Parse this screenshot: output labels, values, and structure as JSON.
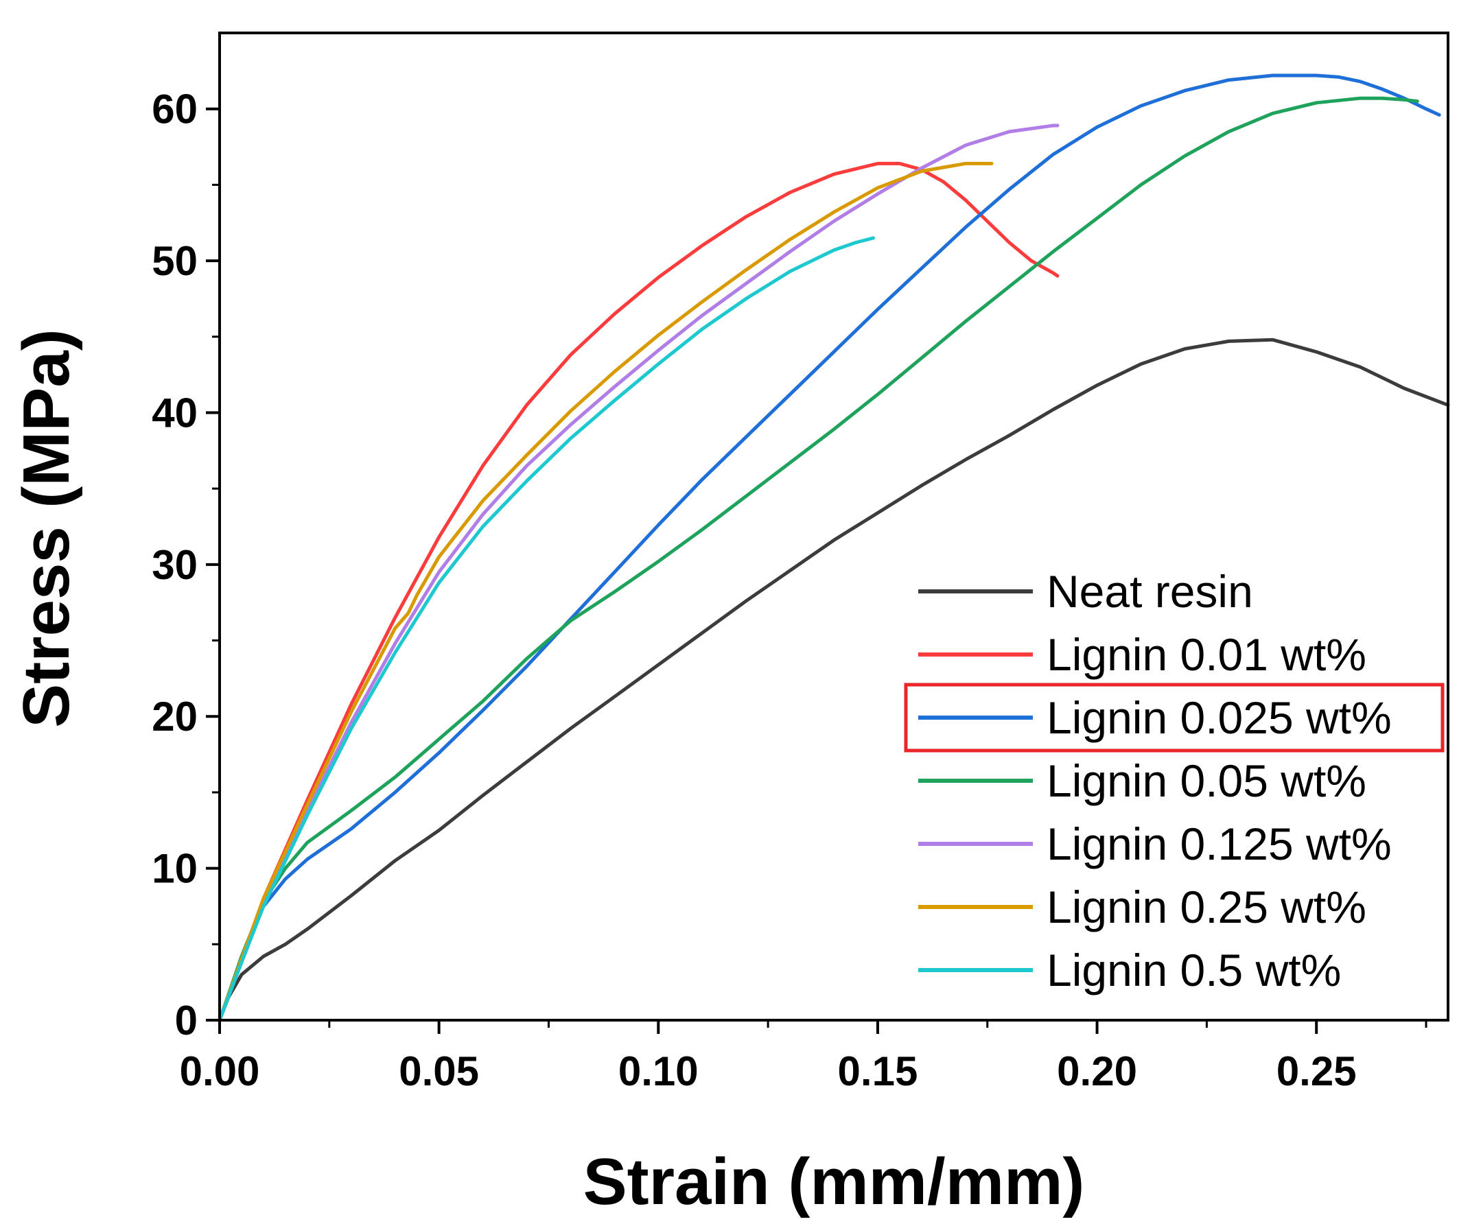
{
  "chart_data": {
    "type": "line",
    "title": "",
    "xlabel": "Strain (mm/mm)",
    "ylabel": "Stress (MPa)",
    "xlim": [
      0,
      0.28
    ],
    "ylim": [
      0,
      65
    ],
    "xticks": [
      0.0,
      0.05,
      0.1,
      0.15,
      0.2,
      0.25
    ],
    "xtick_labels": [
      "0.00",
      "0.05",
      "0.10",
      "0.15",
      "0.20",
      "0.25"
    ],
    "yticks": [
      0,
      10,
      20,
      30,
      40,
      50,
      60
    ],
    "ytick_labels": [
      "0",
      "10",
      "20",
      "30",
      "40",
      "50",
      "60"
    ],
    "grid": false,
    "legend_position": "bottom-right",
    "highlighted_legend_entry": "Lignin 0.025 wt%",
    "highlight_color": "#e8262a",
    "series": [
      {
        "name": "Neat resin",
        "color": "#3c3c3c",
        "x": [
          0,
          0.002,
          0.005,
          0.01,
          0.015,
          0.02,
          0.03,
          0.04,
          0.05,
          0.06,
          0.07,
          0.08,
          0.09,
          0.1,
          0.11,
          0.12,
          0.13,
          0.14,
          0.15,
          0.16,
          0.17,
          0.18,
          0.19,
          0.2,
          0.21,
          0.22,
          0.23,
          0.24,
          0.25,
          0.26,
          0.27,
          0.28
        ],
        "y": [
          0,
          1.5,
          3,
          4.2,
          5,
          6,
          8.2,
          10.5,
          12.5,
          14.8,
          17,
          19.2,
          21.3,
          23.4,
          25.5,
          27.6,
          29.6,
          31.6,
          33.4,
          35.2,
          36.9,
          38.5,
          40.2,
          41.8,
          43.2,
          44.2,
          44.7,
          44.8,
          44.0,
          43.0,
          41.6,
          40.5
        ]
      },
      {
        "name": "Lignin 0.01 wt%",
        "color": "#fa3c3c",
        "x": [
          0,
          0.005,
          0.01,
          0.02,
          0.03,
          0.04,
          0.05,
          0.06,
          0.07,
          0.08,
          0.09,
          0.1,
          0.11,
          0.12,
          0.13,
          0.14,
          0.15,
          0.155,
          0.16,
          0.165,
          0.17,
          0.175,
          0.18,
          0.185,
          0.19,
          0.191
        ],
        "y": [
          0,
          4,
          8,
          14.5,
          20.8,
          26.5,
          31.8,
          36.5,
          40.5,
          43.8,
          46.5,
          48.9,
          51.0,
          52.9,
          54.5,
          55.7,
          56.4,
          56.4,
          56.0,
          55.2,
          54.0,
          52.6,
          51.2,
          50.0,
          49.2,
          49.0
        ]
      },
      {
        "name": "Lignin 0.025 wt%",
        "color": "#1f6fd8",
        "x": [
          0,
          0.005,
          0.01,
          0.015,
          0.02,
          0.03,
          0.04,
          0.05,
          0.06,
          0.07,
          0.08,
          0.09,
          0.1,
          0.11,
          0.12,
          0.13,
          0.14,
          0.15,
          0.16,
          0.17,
          0.18,
          0.19,
          0.2,
          0.21,
          0.22,
          0.23,
          0.24,
          0.25,
          0.255,
          0.26,
          0.265,
          0.27,
          0.275,
          0.278
        ],
        "y": [
          0,
          4,
          7.5,
          9.3,
          10.6,
          12.6,
          15.0,
          17.6,
          20.4,
          23.3,
          26.4,
          29.5,
          32.6,
          35.6,
          38.4,
          41.2,
          44.0,
          46.8,
          49.5,
          52.2,
          54.7,
          57.0,
          58.8,
          60.2,
          61.2,
          61.9,
          62.2,
          62.2,
          62.1,
          61.8,
          61.3,
          60.7,
          60.0,
          59.6
        ]
      },
      {
        "name": "Lignin 0.05 wt%",
        "color": "#1fa35c",
        "x": [
          0,
          0.005,
          0.01,
          0.015,
          0.02,
          0.03,
          0.04,
          0.05,
          0.06,
          0.07,
          0.08,
          0.09,
          0.1,
          0.11,
          0.12,
          0.13,
          0.14,
          0.15,
          0.16,
          0.17,
          0.18,
          0.19,
          0.2,
          0.21,
          0.22,
          0.23,
          0.24,
          0.25,
          0.26,
          0.265,
          0.27,
          0.273
        ],
        "y": [
          0,
          4.2,
          7.8,
          10,
          11.7,
          13.8,
          16.0,
          18.5,
          21.0,
          23.8,
          26.3,
          28.2,
          30.2,
          32.3,
          34.5,
          36.7,
          38.9,
          41.2,
          43.6,
          46.0,
          48.3,
          50.6,
          52.8,
          55.0,
          56.9,
          58.5,
          59.7,
          60.4,
          60.7,
          60.7,
          60.6,
          60.5
        ]
      },
      {
        "name": "Lignin 0.125 wt%",
        "color": "#b07ee6",
        "x": [
          0,
          0.005,
          0.01,
          0.02,
          0.03,
          0.04,
          0.05,
          0.06,
          0.07,
          0.08,
          0.09,
          0.1,
          0.11,
          0.12,
          0.13,
          0.14,
          0.15,
          0.16,
          0.17,
          0.18,
          0.19,
          0.191
        ],
        "y": [
          0,
          4,
          7.8,
          13.8,
          19.6,
          24.8,
          29.5,
          33.3,
          36.5,
          39.2,
          41.7,
          44.1,
          46.4,
          48.5,
          50.6,
          52.6,
          54.4,
          56.1,
          57.6,
          58.5,
          58.9,
          58.9
        ]
      },
      {
        "name": "Lignin 0.25 wt%",
        "color": "#d99a00",
        "x": [
          0,
          0.005,
          0.01,
          0.02,
          0.03,
          0.04,
          0.043,
          0.045,
          0.05,
          0.06,
          0.07,
          0.08,
          0.09,
          0.1,
          0.11,
          0.12,
          0.13,
          0.14,
          0.15,
          0.16,
          0.17,
          0.176
        ],
        "y": [
          0,
          4,
          8,
          14.2,
          20.3,
          25.8,
          26.8,
          28,
          30.5,
          34.2,
          37.2,
          40.1,
          42.7,
          45.1,
          47.3,
          49.4,
          51.4,
          53.2,
          54.8,
          55.9,
          56.4,
          56.4
        ]
      },
      {
        "name": "Lignin 0.5 wt%",
        "color": "#1ec8cf",
        "x": [
          0,
          0.005,
          0.01,
          0.02,
          0.03,
          0.04,
          0.05,
          0.06,
          0.07,
          0.08,
          0.09,
          0.1,
          0.11,
          0.12,
          0.13,
          0.14,
          0.145,
          0.149
        ],
        "y": [
          0,
          3.8,
          7.5,
          13.5,
          19.2,
          24.2,
          28.8,
          32.5,
          35.5,
          38.3,
          40.8,
          43.2,
          45.5,
          47.5,
          49.3,
          50.7,
          51.2,
          51.5
        ]
      }
    ]
  }
}
